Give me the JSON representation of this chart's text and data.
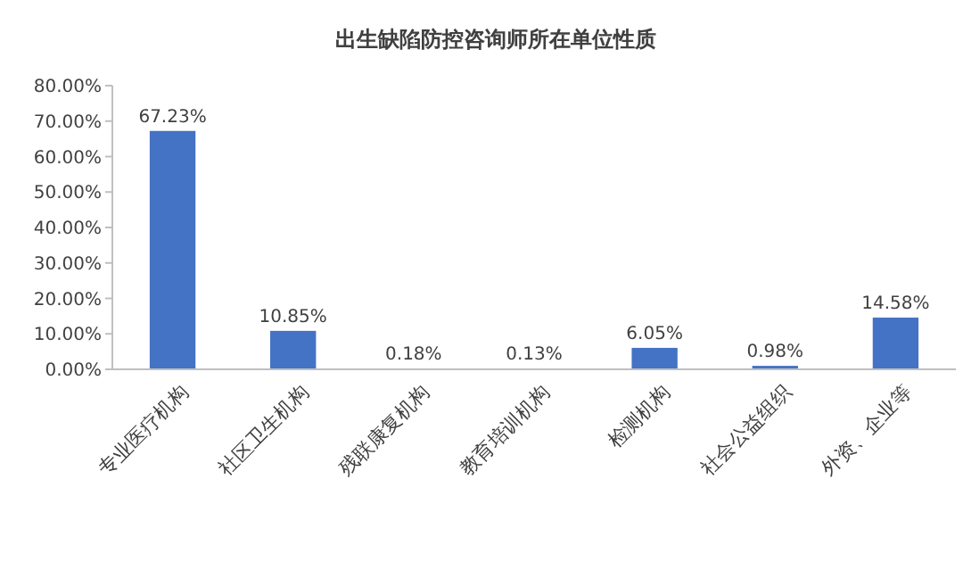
{
  "chart_data": {
    "type": "bar",
    "title": "出生缺陷防控咨询师所在单位性质",
    "categories": [
      "专业医疗机构",
      "社区卫生机构",
      "残联康复机构",
      "教育培训机构",
      "检测机构",
      "社会公益组织",
      "外资、企业等"
    ],
    "values": [
      67.23,
      10.85,
      0.18,
      0.13,
      6.05,
      0.98,
      14.58
    ],
    "value_labels": [
      "67.23%",
      "10.85%",
      "0.18%",
      "0.13%",
      "6.05%",
      "0.98%",
      "14.58%"
    ],
    "color": "#4472c4",
    "ylim": [
      0,
      80
    ],
    "yticks": [
      {
        "value": 0,
        "label": "0.00%"
      },
      {
        "value": 10,
        "label": "10.00%"
      },
      {
        "value": 20,
        "label": "20.00%"
      },
      {
        "value": 30,
        "label": "30.00%"
      },
      {
        "value": 40,
        "label": "40.00%"
      },
      {
        "value": 50,
        "label": "50.00%"
      },
      {
        "value": 60,
        "label": "60.00%"
      },
      {
        "value": 70,
        "label": "70.00%"
      },
      {
        "value": 80,
        "label": "80.00%"
      }
    ],
    "grid": false
  }
}
